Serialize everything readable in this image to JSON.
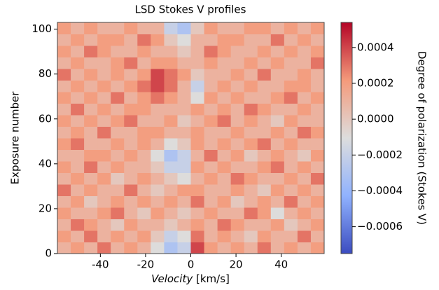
{
  "chart_data": {
    "type": "heatmap",
    "title": "LSD Stokes V profiles",
    "xlabel_italic": "Velocity",
    "xlabel_unit": "[km/s]",
    "ylabel": "Exposure number",
    "colorbar_label": "Degree of polarization (Stokes V)",
    "colormap": "coolwarm",
    "xlim": [
      -59,
      59
    ],
    "ylim": [
      0,
      103
    ],
    "xticks": [
      -40,
      -20,
      0,
      20,
      40
    ],
    "yticks": [
      0,
      20,
      40,
      60,
      80,
      100
    ],
    "clim": [
      -0.00075,
      0.00054
    ],
    "cticks": [
      {
        "value": 0.0004,
        "label": "0.0004"
      },
      {
        "value": 0.0002,
        "label": "0.0002"
      },
      {
        "value": 0,
        "label": "0.0000"
      },
      {
        "value": -0.0002,
        "label": "−0.0002"
      },
      {
        "value": -0.0004,
        "label": "−0.0004"
      },
      {
        "value": -0.0006,
        "label": "−0.0006"
      }
    ],
    "z": [
      [
        0.0001,
        0.0002,
        0.0001,
        0.0003,
        0.0001,
        0.0002,
        0.0001,
        -0.0001,
        -0.0003,
        -0.0002,
        0.0004,
        0.0002,
        0.0001,
        0.0002,
        0.0001,
        0.0003,
        0.0001,
        0.0002,
        0.0001,
        0.0002
      ],
      [
        0.0002,
        0.0001,
        0.0003,
        0.0001,
        0.0002,
        0.0001,
        0.0002,
        0,
        -0.0002,
        -0.0001,
        0.0003,
        0.0001,
        0.0002,
        0.0001,
        0,
        0.0002,
        0.0001,
        0.0001,
        0.0003,
        0.0001
      ],
      [
        0.0001,
        0.0003,
        0.0002,
        0.0001,
        0,
        0.0002,
        0.0001,
        0.0001,
        0,
        0.0001,
        0.0002,
        0.0001,
        0.0003,
        0.0002,
        0.0001,
        0.0001,
        0.0002,
        0,
        0.0001,
        0.0002
      ],
      [
        0.0002,
        0.0001,
        0.0001,
        0.0002,
        0.0003,
        0.0001,
        0,
        0.0002,
        0.0001,
        0,
        0.0001,
        0.0002,
        0.0001,
        0.0001,
        0.0003,
        0.0002,
        -0.0001,
        0.0001,
        0.0002,
        0.0001
      ],
      [
        0.0001,
        0.0002,
        0,
        0.0001,
        0.0002,
        0.0001,
        0.0002,
        0.0001,
        0.0002,
        0.0001,
        0.0003,
        0.0001,
        0.0002,
        0,
        0.0001,
        0.0002,
        0.0001,
        0.0003,
        0.0001,
        0.0002
      ],
      [
        0.0003,
        0.0001,
        0.0002,
        0.0001,
        0.0001,
        0.0003,
        0.0001,
        0,
        0.0001,
        0.0002,
        0.0002,
        0.0001,
        0.0001,
        0.0002,
        0.0001,
        0,
        0.0002,
        0.0001,
        0.0002,
        0.0001
      ],
      [
        0.0001,
        0.0002,
        0.0001,
        0.0002,
        0,
        0.0001,
        0.0002,
        0.0001,
        0,
        -0.0001,
        0.0001,
        0.0002,
        0.0001,
        0.0003,
        0.0002,
        0.0001,
        0.0001,
        0.0002,
        0.0001,
        0.0003
      ],
      [
        0.0002,
        0.0001,
        0.0003,
        0.0001,
        0.0002,
        0.0001,
        0.0001,
        0,
        -0.0002,
        -0.0002,
        0.0002,
        0.0001,
        0.0002,
        0.0001,
        0.0001,
        0.0002,
        0.0003,
        0.0001,
        0.0002,
        0.0001
      ],
      [
        0.0001,
        0.0001,
        0.0002,
        0.0002,
        0.0001,
        0.0002,
        0.0001,
        -0.0001,
        -0.0003,
        -0.0002,
        0.0001,
        0.0003,
        0.0001,
        0.0002,
        0,
        0.0001,
        0.0002,
        0.0001,
        0,
        0.0002
      ],
      [
        0.0002,
        0.0003,
        0.0001,
        0.0001,
        0.0002,
        0.0001,
        0.0002,
        0.0001,
        -0.0001,
        0,
        0.0002,
        0.0001,
        0.0002,
        0.0001,
        0.0002,
        0.0003,
        0.0001,
        0.0002,
        0.0001,
        0.0001
      ],
      [
        0.0001,
        0.0002,
        0.0001,
        0.0003,
        0.0001,
        0.0001,
        0.0002,
        0.0002,
        0.0001,
        0.0001,
        0.0002,
        0.0001,
        0.0001,
        0.0002,
        0.0001,
        0.0001,
        0.0002,
        0.0001,
        0.0003,
        0.0002
      ],
      [
        0.0002,
        0.0001,
        0.0002,
        0.0001,
        0.0002,
        0.0003,
        0.0001,
        0.0001,
        0.0002,
        0,
        0.0001,
        0.0002,
        0.0003,
        0.0001,
        0.0002,
        0.0001,
        0,
        0.0002,
        0.0001,
        0.0001
      ],
      [
        0.0001,
        0.0003,
        0.0001,
        0.0002,
        0.0001,
        0.0002,
        0.0002,
        0.0001,
        0.0001,
        0.0001,
        0.0002,
        0.0001,
        0.0002,
        0.0001,
        0.0003,
        0.0002,
        0.0001,
        0.0001,
        0.0002,
        0.0001
      ],
      [
        0.0002,
        0.0001,
        0.0002,
        0.0001,
        0.0003,
        0.0001,
        0.0002,
        0.0003,
        0.0002,
        0.0001,
        -0.0001,
        0.0002,
        0.0001,
        0.0002,
        0.0001,
        0.0001,
        0.0002,
        0.0003,
        0.0001,
        0.0002
      ],
      [
        0.0001,
        0.0002,
        0.0001,
        0.0002,
        0.0001,
        0.0002,
        0.0003,
        0.0004,
        0.0003,
        0.0001,
        -0.0002,
        0.0001,
        0.0002,
        0.0001,
        0.0002,
        0.0001,
        0.0001,
        0.0002,
        0.0002,
        0.0001
      ],
      [
        0.0003,
        0.0001,
        0.0002,
        0.0001,
        0.0002,
        0.0001,
        0.0002,
        0.0004,
        0.0003,
        0.0002,
        0,
        0.0001,
        0.0001,
        0.0002,
        0.0001,
        0.0003,
        0.0001,
        0.0001,
        0.0002,
        0.0001
      ],
      [
        0.0001,
        0.0002,
        0.0001,
        0.0001,
        0.0002,
        0.0003,
        0.0001,
        0.0002,
        0.0002,
        0.0001,
        0.0001,
        0.0002,
        0.0001,
        0.0001,
        0.0002,
        0.0001,
        0.0002,
        0.0001,
        0.0001,
        0.0003
      ],
      [
        0.0002,
        0.0001,
        0.0003,
        0.0002,
        0.0001,
        0.0001,
        0.0002,
        0.0001,
        0.0001,
        0,
        0.0001,
        0.0003,
        0.0002,
        0.0001,
        0.0001,
        0.0002,
        0.0001,
        0.0002,
        0.0001,
        0.0002
      ],
      [
        0.0001,
        0.0002,
        0.0001,
        0.0002,
        0.0002,
        0.0001,
        0.0003,
        0.0002,
        0,
        -0.0001,
        0.0001,
        0.0001,
        0.0002,
        0.0002,
        0.0001,
        0.0001,
        0.0003,
        0.0001,
        0.0002,
        0.0001
      ],
      [
        0.0002,
        0.0001,
        0.0002,
        0.0001,
        0.0001,
        0.0002,
        0.0001,
        0.0001,
        -0.0002,
        -0.0003,
        0,
        0.0002,
        0.0001,
        0.0001,
        0.0002,
        0.0002,
        0.0001,
        0.0002,
        0.0001,
        0.0002
      ]
    ]
  }
}
